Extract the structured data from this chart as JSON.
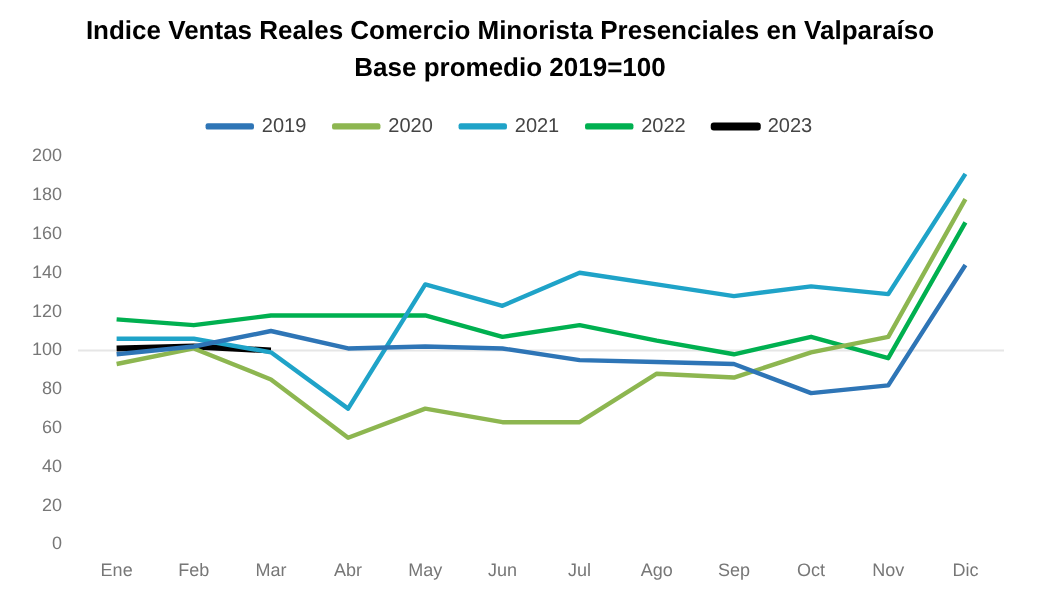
{
  "chart_data": {
    "type": "line",
    "title": "Indice Ventas Reales Comercio Minorista Presenciales en Valparaíso",
    "subtitle": "Base promedio 2019=100",
    "categories": [
      "Ene",
      "Feb",
      "Mar",
      "Abr",
      "May",
      "Jun",
      "Jul",
      "Ago",
      "Sep",
      "Oct",
      "Nov",
      "Dic"
    ],
    "series": [
      {
        "name": "2019",
        "color": "#2e75b6",
        "values": [
          98,
          102,
          110,
          101,
          102,
          101,
          95,
          94,
          93,
          78,
          82,
          144
        ]
      },
      {
        "name": "2020",
        "color": "#8db650",
        "values": [
          93,
          101,
          85,
          55,
          70,
          63,
          63,
          88,
          86,
          99,
          107,
          178
        ]
      },
      {
        "name": "2021",
        "color": "#1fa3c8",
        "values": [
          106,
          106,
          99,
          70,
          134,
          123,
          140,
          134,
          128,
          133,
          129,
          191
        ]
      },
      {
        "name": "2022",
        "color": "#00b050",
        "values": [
          116,
          113,
          118,
          118,
          118,
          107,
          113,
          105,
          98,
          107,
          96,
          166
        ]
      },
      {
        "name": "2023",
        "color": "#000000",
        "values": [
          101,
          102,
          100,
          null,
          null,
          null,
          null,
          null,
          null,
          null,
          null,
          null
        ]
      }
    ],
    "ylim": [
      0,
      200
    ],
    "yticks": [
      0,
      20,
      40,
      60,
      80,
      100,
      120,
      140,
      160,
      180,
      200
    ],
    "ref_lines": [
      {
        "axis": "y",
        "value": 100,
        "color": "#e6e6e6"
      }
    ],
    "grid": false,
    "legend": "top",
    "marker": "none",
    "line_style": "solid"
  }
}
